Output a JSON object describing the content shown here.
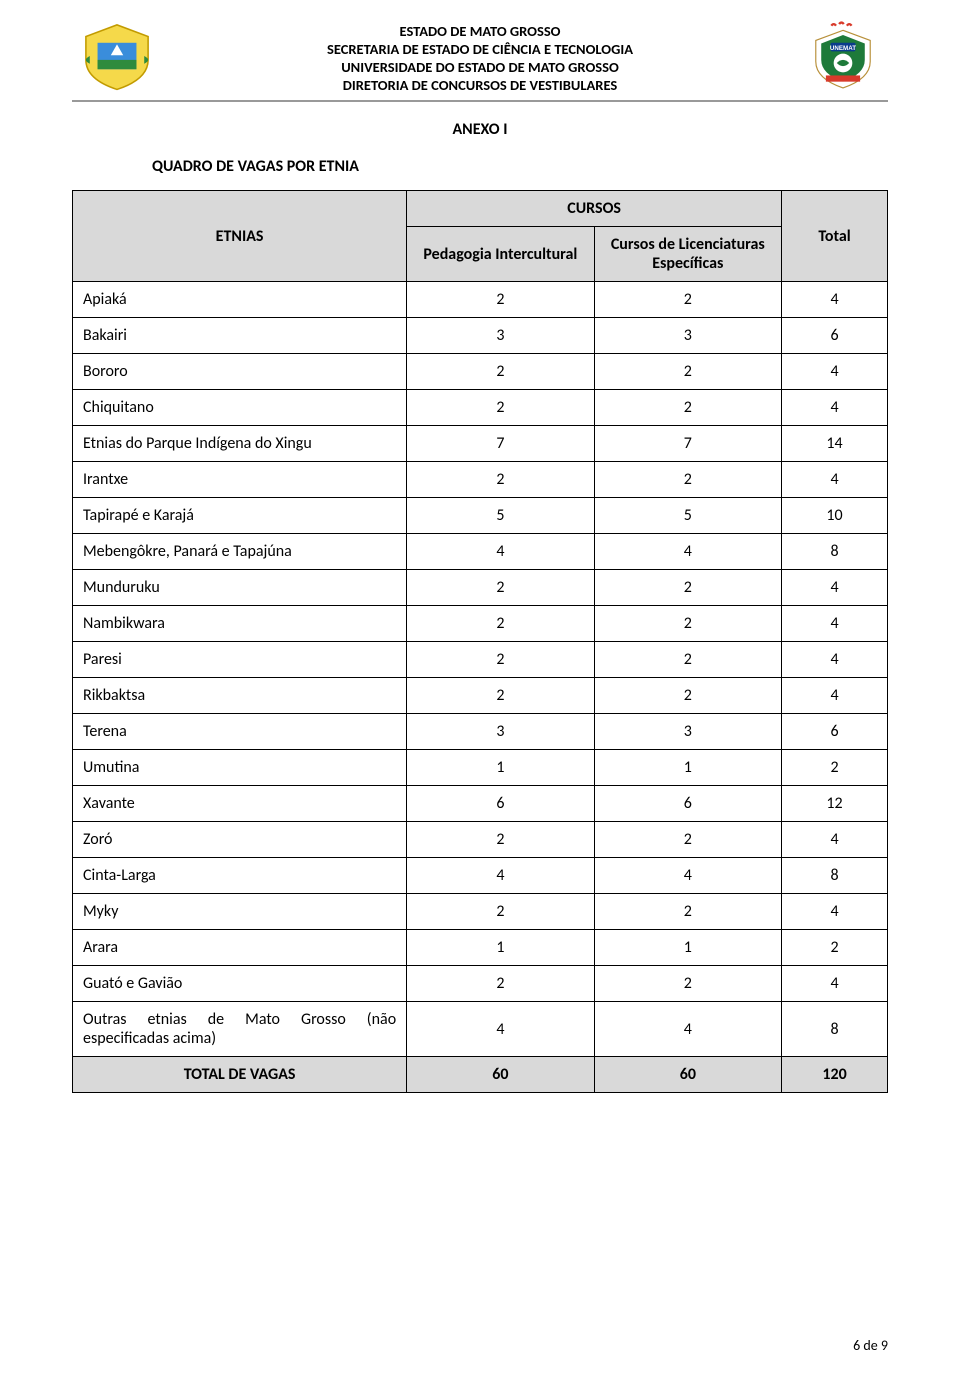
{
  "header": {
    "line1": "ESTADO DE MATO GROSSO",
    "line2": "SECRETARIA DE ESTADO DE CIÊNCIA E TECNOLOGIA",
    "line3": "UNIVERSIDADE DO ESTADO DE MATO GROSSO",
    "line4": "DIRETORIA DE CONCURSOS DE VESTIBULARES"
  },
  "anexo_title": "ANEXO I",
  "table_title": "QUADRO DE VAGAS POR ETNIA",
  "table": {
    "col_etnias": "ETNIAS",
    "col_cursos": "CURSOS",
    "col_pedagogia": "Pedagogia Intercultural",
    "col_licenciaturas": "Cursos de Licenciaturas Específicas",
    "col_total": "Total",
    "rows": [
      {
        "etnia": "Apiaká",
        "c1": "2",
        "c2": "2",
        "c3": "4"
      },
      {
        "etnia": "Bakairi",
        "c1": "3",
        "c2": "3",
        "c3": "6"
      },
      {
        "etnia": "Bororo",
        "c1": "2",
        "c2": "2",
        "c3": "4"
      },
      {
        "etnia": "Chiquitano",
        "c1": "2",
        "c2": "2",
        "c3": "4"
      },
      {
        "etnia": "Etnias do Parque Indígena do Xingu",
        "c1": "7",
        "c2": "7",
        "c3": "14"
      },
      {
        "etnia": "Irantxe",
        "c1": "2",
        "c2": "2",
        "c3": "4"
      },
      {
        "etnia": "Tapirapé e Karajá",
        "c1": "5",
        "c2": "5",
        "c3": "10"
      },
      {
        "etnia": "Mebengôkre, Panará e Tapajúna",
        "c1": "4",
        "c2": "4",
        "c3": "8"
      },
      {
        "etnia": "Munduruku",
        "c1": "2",
        "c2": "2",
        "c3": "4"
      },
      {
        "etnia": "Nambikwara",
        "c1": "2",
        "c2": "2",
        "c3": "4"
      },
      {
        "etnia": "Paresi",
        "c1": "2",
        "c2": "2",
        "c3": "4"
      },
      {
        "etnia": "Rikbaktsa",
        "c1": "2",
        "c2": "2",
        "c3": "4"
      },
      {
        "etnia": "Terena",
        "c1": "3",
        "c2": "3",
        "c3": "6"
      },
      {
        "etnia": "Umutina",
        "c1": "1",
        "c2": "1",
        "c3": "2"
      },
      {
        "etnia": "Xavante",
        "c1": "6",
        "c2": "6",
        "c3": "12"
      },
      {
        "etnia": "Zoró",
        "c1": "2",
        "c2": "2",
        "c3": "4"
      },
      {
        "etnia": "Cinta-Larga",
        "c1": "4",
        "c2": "4",
        "c3": "8"
      },
      {
        "etnia": "Myky",
        "c1": "2",
        "c2": "2",
        "c3": "4"
      },
      {
        "etnia": "Arara",
        "c1": "1",
        "c2": "1",
        "c3": "2"
      },
      {
        "etnia": "Guató e Gavião",
        "c1": "2",
        "c2": "2",
        "c3": "4"
      },
      {
        "etnia": "Outras etnias de Mato Grosso (não especificadas acima)",
        "c1": "4",
        "c2": "4",
        "c3": "8",
        "justify": true
      }
    ],
    "total_label": "TOTAL DE VAGAS",
    "total_c1": "60",
    "total_c2": "60",
    "total_c3": "120"
  },
  "footer": "6 de 9",
  "colors": {
    "header_bg": "#d9d9d9",
    "border": "#000000"
  }
}
